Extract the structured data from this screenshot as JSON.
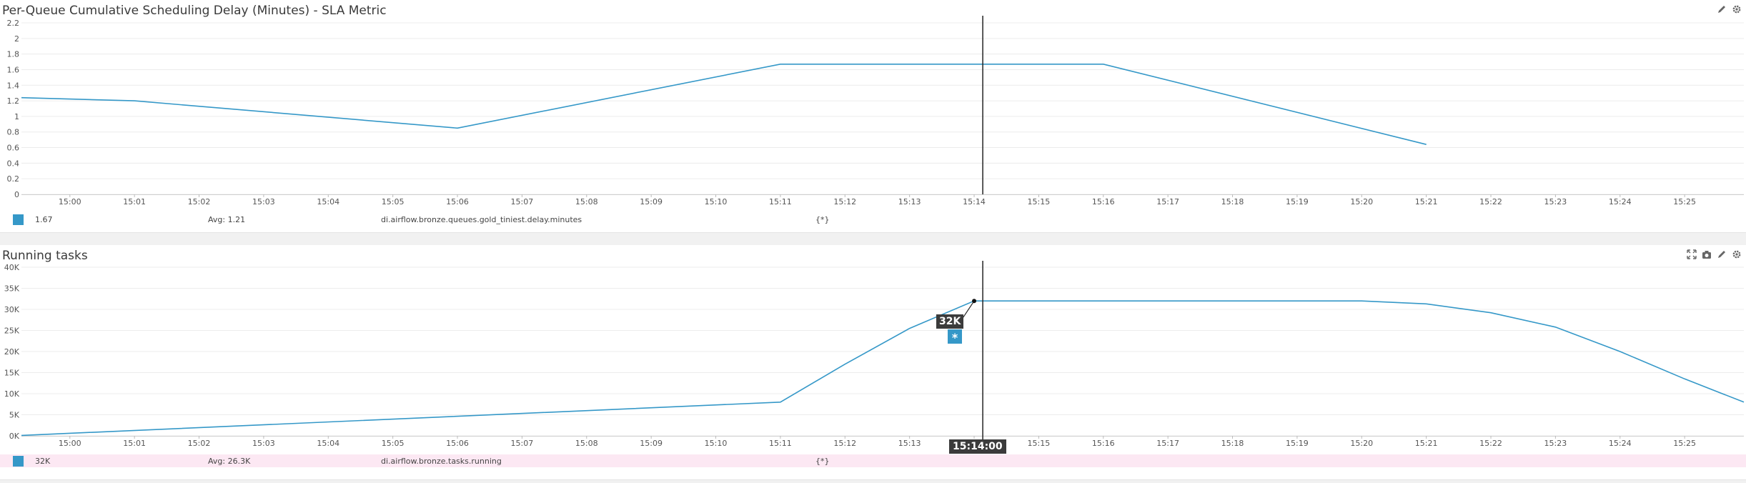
{
  "colors": {
    "series": "#3598c8",
    "cursor": "#222222",
    "grid": "#ececec"
  },
  "panels": [
    {
      "title": "Per-Queue Cumulative Scheduling Delay (Minutes) - SLA Metric",
      "tools": [
        "pencil-icon",
        "gear-icon"
      ],
      "legend": {
        "value": "1.67",
        "avg": "Avg: 1.21",
        "metric": "di.airflow.bronze.queues.gold_tiniest.delay.minutes",
        "scope": "{*}"
      }
    },
    {
      "title": "Running tasks",
      "tools": [
        "expand-icon",
        "camera-icon",
        "pencil-icon",
        "gear-icon"
      ],
      "legend": {
        "value": "32K",
        "avg": "Avg: 26.3K",
        "metric": "di.airflow.bronze.tasks.running",
        "scope": "{*}"
      },
      "tooltip": {
        "value": "32K",
        "marker": "*",
        "time": "15:14:00"
      }
    }
  ],
  "chart_data": [
    {
      "type": "line",
      "title": "Per-Queue Cumulative Scheduling Delay (Minutes) - SLA Metric",
      "x_tick_labels": [
        "15:00",
        "15:01",
        "15:02",
        "15:03",
        "15:04",
        "15:05",
        "15:06",
        "15:07",
        "15:08",
        "15:09",
        "15:10",
        "15:11",
        "15:12",
        "15:13",
        "15:14",
        "15:15",
        "15:16",
        "15:17",
        "15:18",
        "15:19",
        "15:20",
        "15:21",
        "15:22",
        "15:23",
        "15:24",
        "15:25"
      ],
      "xlim": [
        "14:59:15",
        "15:25:55"
      ],
      "y_tick_labels": [
        "0",
        "0.2",
        "0.4",
        "0.6",
        "0.8",
        "1",
        "1.2",
        "1.4",
        "1.6",
        "1.8",
        "2",
        "2.2"
      ],
      "ylim": [
        0,
        2.2
      ],
      "grid": true,
      "cursor_x": "15:14:08",
      "series": [
        {
          "name": "di.airflow.bronze.queues.gold_tiniest.delay.minutes",
          "x": [
            "14:59:15",
            "15:01:00",
            "15:06:00",
            "15:11:00",
            "15:16:00",
            "15:21:00"
          ],
          "values": [
            1.24,
            1.2,
            0.85,
            1.67,
            1.67,
            0.64
          ]
        }
      ]
    },
    {
      "type": "line",
      "title": "Running tasks",
      "x_tick_labels": [
        "15:00",
        "15:01",
        "15:02",
        "15:03",
        "15:04",
        "15:05",
        "15:06",
        "15:07",
        "15:08",
        "15:09",
        "15:10",
        "15:11",
        "15:12",
        "15:13",
        "15:14",
        "15:15",
        "15:16",
        "15:17",
        "15:18",
        "15:19",
        "15:20",
        "15:21",
        "15:22",
        "15:23",
        "15:24",
        "15:25"
      ],
      "xlim": [
        "14:59:15",
        "15:25:55"
      ],
      "y_tick_labels": [
        "0K",
        "5K",
        "10K",
        "15K",
        "20K",
        "25K",
        "30K",
        "35K",
        "40K"
      ],
      "ylim": [
        0,
        40000
      ],
      "grid": true,
      "cursor_x": "15:14:08",
      "highlight_point": {
        "x": "15:14:00",
        "value": 32000
      },
      "series": [
        {
          "name": "di.airflow.bronze.tasks.running",
          "x": [
            "14:59:15",
            "15:11:00",
            "15:12:00",
            "15:13:00",
            "15:14:00",
            "15:20:00",
            "15:21:00",
            "15:22:00",
            "15:23:00",
            "15:24:00",
            "15:25:00",
            "15:25:55"
          ],
          "values": [
            100,
            8000,
            17000,
            25500,
            32000,
            32000,
            31300,
            29200,
            25800,
            20000,
            13500,
            8000
          ]
        }
      ]
    }
  ]
}
